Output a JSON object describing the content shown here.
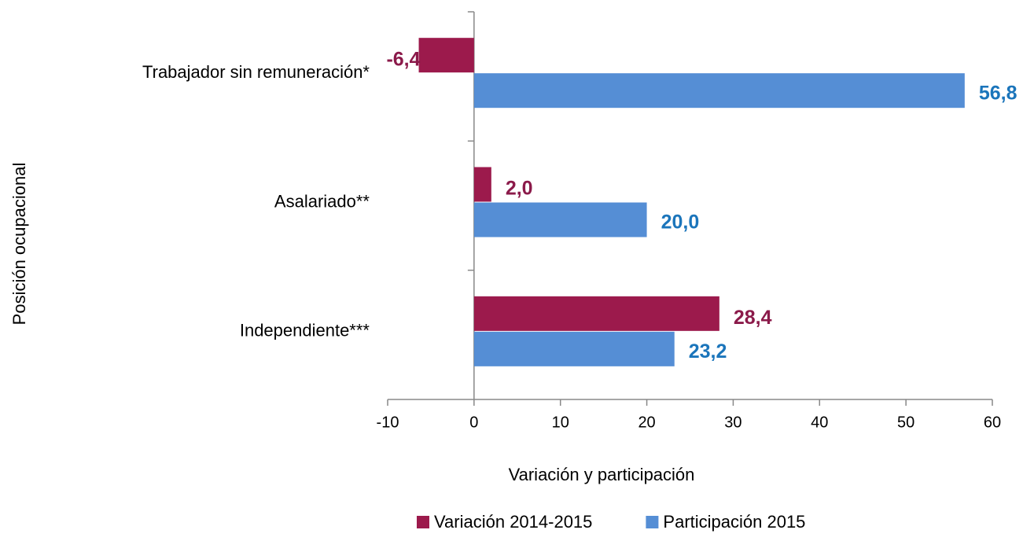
{
  "chart_data": {
    "type": "hbar",
    "categories": [
      "Trabajador sin remuneración*",
      "Asalariado**",
      "Independiente***"
    ],
    "series": [
      {
        "name": "Variación 2014-2015",
        "color": "#9c1a4c",
        "label_color": "#8b1a4a",
        "values": [
          -6.4,
          2.0,
          28.4
        ],
        "value_labels": [
          "-6,4",
          "2,0",
          "28,4"
        ]
      },
      {
        "name": "Participación 2015",
        "color": "#558ed5",
        "label_color": "#1b75bb",
        "values": [
          56.8,
          20.0,
          23.2
        ],
        "value_labels": [
          "56,8",
          "20,0",
          "23,2"
        ]
      }
    ],
    "xlabel": "Variación y participación",
    "ylabel": "Posición ocupacional",
    "xlim": [
      -10,
      60
    ],
    "xticks": [
      -10,
      0,
      10,
      20,
      30,
      40,
      50,
      60
    ],
    "legend": "bottom"
  }
}
